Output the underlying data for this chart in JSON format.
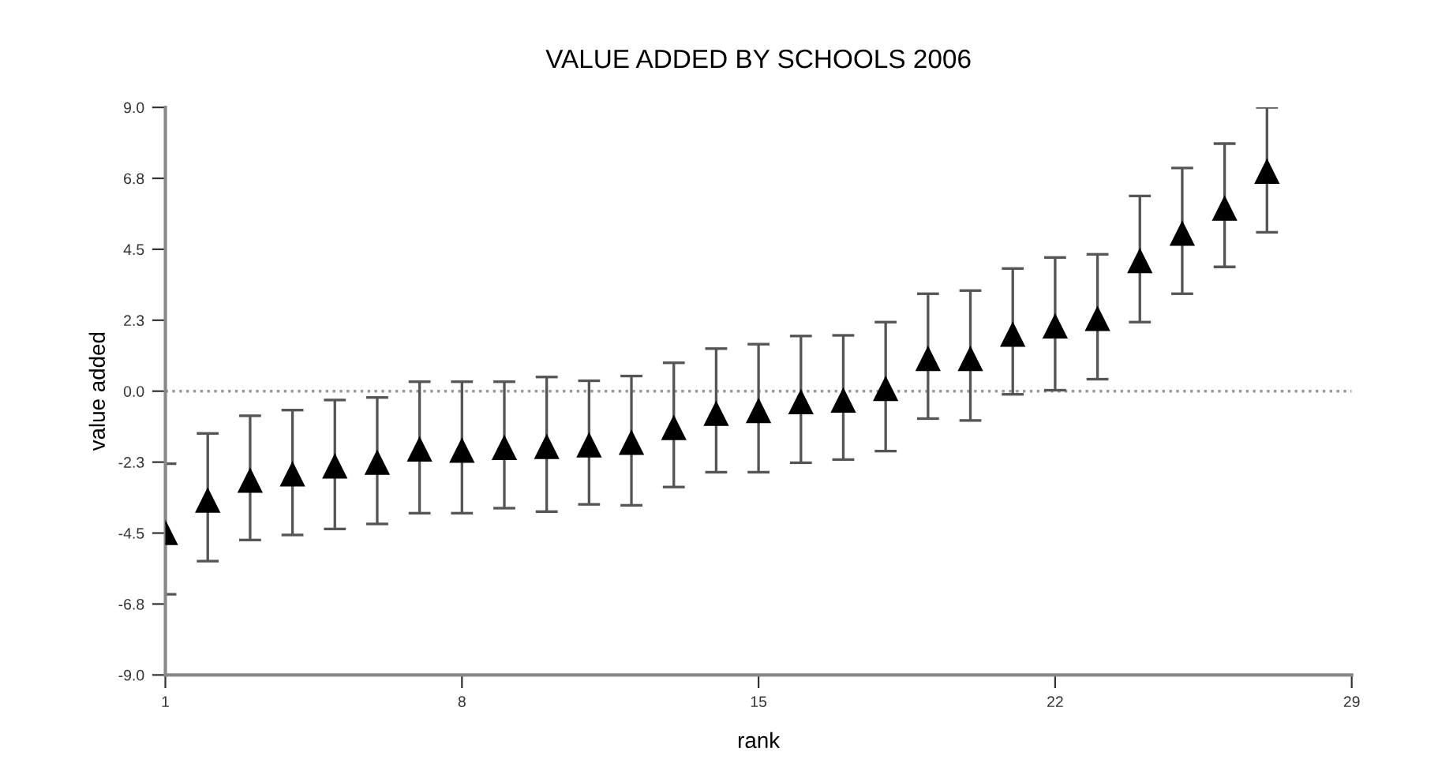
{
  "chart_data": {
    "type": "scatter",
    "title": "VALUE ADDED BY SCHOOLS 2006",
    "xlabel": "rank",
    "ylabel": "value added",
    "x": [
      1,
      2,
      3,
      4,
      5,
      6,
      7,
      8,
      9,
      10,
      11,
      12,
      13,
      14,
      15,
      16,
      17,
      18,
      19,
      20,
      21,
      22,
      23,
      24,
      25,
      26,
      27
    ],
    "series": [
      {
        "color": "#000000",
        "values": [
          -4.5,
          -3.47,
          -2.84,
          -2.64,
          -2.39,
          -2.27,
          -1.85,
          -1.89,
          -1.8,
          -1.77,
          -1.72,
          -1.64,
          -1.17,
          -0.72,
          -0.63,
          -0.35,
          -0.3,
          0.07,
          1.02,
          1.02,
          1.79,
          2.05,
          2.29,
          4.12,
          4.99,
          5.79,
          6.96
        ],
        "errors": [
          [
            -6.44,
            -2.3
          ],
          [
            -5.39,
            -1.34
          ],
          [
            -4.72,
            -0.78
          ],
          [
            -4.56,
            -0.6
          ],
          [
            -4.37,
            -0.28
          ],
          [
            -4.21,
            -0.2
          ],
          [
            -3.87,
            0.3
          ],
          [
            -3.87,
            0.3
          ],
          [
            -3.71,
            0.3
          ],
          [
            -3.82,
            0.45
          ],
          [
            -3.59,
            0.33
          ],
          [
            -3.62,
            0.48
          ],
          [
            -3.04,
            0.9
          ],
          [
            -2.57,
            1.35
          ],
          [
            -2.57,
            1.49
          ],
          [
            -2.27,
            1.75
          ],
          [
            -2.17,
            1.77
          ],
          [
            -1.9,
            2.19
          ],
          [
            -0.87,
            3.09
          ],
          [
            -0.93,
            3.19
          ],
          [
            -0.1,
            3.89
          ],
          [
            0.03,
            4.24
          ],
          [
            0.38,
            4.34
          ],
          [
            2.19,
            6.19
          ],
          [
            3.09,
            7.08
          ],
          [
            3.94,
            7.85
          ],
          [
            5.04,
            9.0
          ]
        ]
      }
    ],
    "marker": "triangle",
    "xlim": [
      1,
      29
    ],
    "xticks": [
      1,
      8,
      15,
      22,
      29
    ],
    "ylim": [
      -9,
      9
    ],
    "yticks": [
      {
        "value": -9,
        "label": "-9.0"
      },
      {
        "value": -6.75,
        "label": "-6.8"
      },
      {
        "value": -4.5,
        "label": "-4.5"
      },
      {
        "value": -2.25,
        "label": "-2.3"
      },
      {
        "value": 0,
        "label": "0.0"
      },
      {
        "value": 2.25,
        "label": "2.3"
      },
      {
        "value": 4.5,
        "label": "4.5"
      },
      {
        "value": 6.75,
        "label": "6.8"
      },
      {
        "value": 9,
        "label": "9.0"
      }
    ],
    "ref_lines": [
      {
        "axis": "y",
        "value": 0,
        "color": "#999999",
        "line_style": "dotted"
      }
    ],
    "grid": false,
    "legend": false
  }
}
